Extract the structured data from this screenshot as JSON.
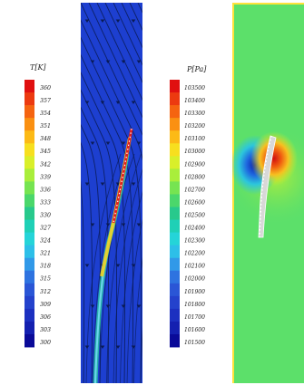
{
  "left_panel": {
    "title": "T[K]",
    "ticks": [
      "360",
      "357",
      "354",
      "351",
      "348",
      "345",
      "342",
      "339",
      "336",
      "333",
      "330",
      "327",
      "324",
      "321",
      "318",
      "315",
      "312",
      "309",
      "306",
      "303",
      "300"
    ]
  },
  "right_panel": {
    "title": "P[Pa]",
    "ticks": [
      "103500",
      "103400",
      "103300",
      "103200",
      "103100",
      "103000",
      "102900",
      "102800",
      "102700",
      "102600",
      "102500",
      "102400",
      "102300",
      "102200",
      "102100",
      "102000",
      "101900",
      "101800",
      "101700",
      "101600",
      "101500"
    ]
  },
  "colors": {
    "jet": [
      "#e01010",
      "#ec3a10",
      "#f56410",
      "#fa9012",
      "#fcba16",
      "#f7df1f",
      "#d9ef2a",
      "#a9ee3b",
      "#76e451",
      "#4bd76b",
      "#28c98c",
      "#1fd0b6",
      "#25d4d8",
      "#2dbfe8",
      "#3199e8",
      "#2e73e0",
      "#2a56d6",
      "#2442cc",
      "#1c30c0",
      "#1420b0",
      "#0a0a98"
    ],
    "flow_background": "#1d3fd0",
    "streamline": "#0a1b55",
    "pressure_background": "#5ce06a"
  }
}
